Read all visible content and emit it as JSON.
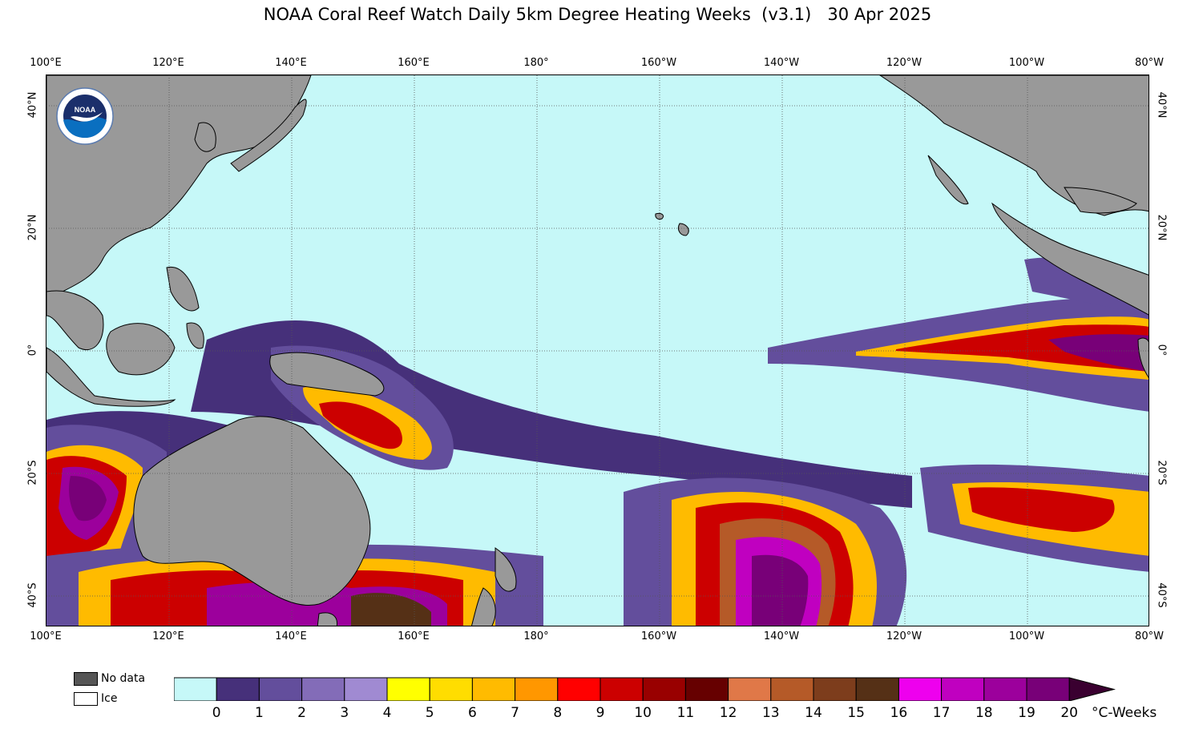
{
  "title": "NOAA Coral Reef Watch Daily 5km Degree Heating Weeks  (v3.1)   30 Apr 2025",
  "logo": {
    "text": "NOAA"
  },
  "lon_labels": [
    "100°E",
    "120°E",
    "140°E",
    "160°E",
    "180°",
    "160°W",
    "140°W",
    "120°W",
    "100°W",
    "80°W"
  ],
  "lat_labels": [
    "40°N",
    "20°N",
    "0°",
    "20°S",
    "40°S"
  ],
  "legend": {
    "no_data": "No data",
    "ice": "Ice",
    "no_data_color": "#555555",
    "ice_color": "#ffffff"
  },
  "colorbar": {
    "ticks": [
      "0",
      "1",
      "2",
      "3",
      "4",
      "5",
      "6",
      "7",
      "8",
      "9",
      "10",
      "11",
      "12",
      "13",
      "14",
      "15",
      "16",
      "17",
      "18",
      "19",
      "20"
    ],
    "colors": [
      "#c6f8f8",
      "#46307a",
      "#634e9c",
      "#836cb8",
      "#a08ad2",
      "#ffff00",
      "#ffdd00",
      "#ffbb00",
      "#ff9700",
      "#ff0000",
      "#cc0000",
      "#990000",
      "#660000",
      "#e07848",
      "#b55a28",
      "#7d3d1c",
      "#553016",
      "#ee00ee",
      "#c000c0",
      "#9c009c",
      "#780078"
    ],
    "overflow_color": "#3a0030",
    "units": "°C-Weeks"
  },
  "colors": {
    "ocean": "#c6f8f8",
    "land": "#999999",
    "grid": "#555555"
  }
}
